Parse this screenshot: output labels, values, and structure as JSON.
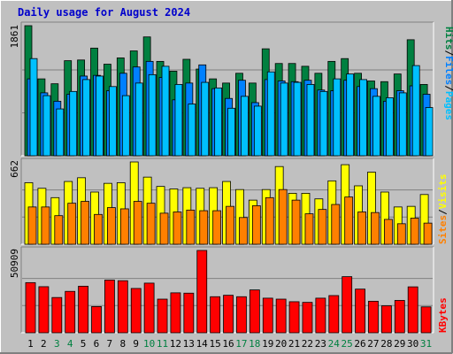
{
  "title": "Daily usage for August 2024",
  "colors": {
    "background": "#c0c0c0",
    "title": "#0000cc",
    "hits": "#008040",
    "files": "#0080ff",
    "pages": "#00c0ff",
    "visits": "#ffff00",
    "sites": "#ff8000",
    "kbytes": "#ff0000",
    "axis_text": "#000000",
    "weekend_day": "#008040"
  },
  "chart_data": [
    {
      "type": "bar",
      "panel": "hits-files-pages",
      "categories": [
        "1",
        "2",
        "3",
        "4",
        "5",
        "6",
        "7",
        "8",
        "9",
        "10",
        "11",
        "12",
        "13",
        "14",
        "15",
        "16",
        "17",
        "18",
        "19",
        "20",
        "21",
        "22",
        "23",
        "24",
        "25",
        "26",
        "27",
        "28",
        "29",
        "30",
        "31"
      ],
      "weekend_days": [
        "3",
        "4",
        "10",
        "11",
        "17",
        "18",
        "24",
        "25",
        "31"
      ],
      "ymax_label": "1861",
      "ylim": [
        0,
        1861
      ],
      "legend": {
        "hits": "Hits",
        "files": "Files",
        "pages": "Pages",
        "sep": "/"
      },
      "series": [
        {
          "name": "Hits",
          "values": [
            1861,
            1100,
            1030,
            1360,
            1370,
            1540,
            1310,
            1400,
            1500,
            1700,
            1350,
            1210,
            1380,
            1240,
            1100,
            1040,
            1180,
            1040,
            1530,
            1320,
            1320,
            1280,
            1180,
            1350,
            1390,
            1180,
            1070,
            1060,
            1170,
            1660,
            1020
          ]
        },
        {
          "name": "Files",
          "values": [
            1100,
            900,
            780,
            880,
            1140,
            1150,
            930,
            1180,
            1270,
            1350,
            1120,
            800,
            1040,
            1300,
            960,
            820,
            1080,
            760,
            1090,
            1070,
            1060,
            1080,
            940,
            930,
            1080,
            990,
            960,
            780,
            930,
            1000,
            880
          ]
        },
        {
          "name": "Pages",
          "values": [
            1390,
            860,
            670,
            920,
            1090,
            1140,
            990,
            860,
            1040,
            1160,
            1280,
            1020,
            740,
            1050,
            970,
            680,
            850,
            710,
            1200,
            1040,
            1050,
            1020,
            920,
            1100,
            1170,
            1090,
            850,
            830,
            900,
            1290,
            690
          ]
        }
      ]
    },
    {
      "type": "bar",
      "panel": "visits-sites",
      "categories": [
        "1",
        "2",
        "3",
        "4",
        "5",
        "6",
        "7",
        "8",
        "9",
        "10",
        "11",
        "12",
        "13",
        "14",
        "15",
        "16",
        "17",
        "18",
        "19",
        "20",
        "21",
        "22",
        "23",
        "24",
        "25",
        "26",
        "27",
        "28",
        "29",
        "30",
        "31"
      ],
      "ymax_label": "662",
      "ylim": [
        0,
        662
      ],
      "legend": {
        "visits": "Visits",
        "sites": "Sites",
        "sep": "/"
      },
      "series": [
        {
          "name": "Visits",
          "values": [
            495,
            450,
            375,
            505,
            535,
            420,
            490,
            495,
            662,
            540,
            465,
            445,
            455,
            450,
            455,
            505,
            440,
            355,
            440,
            625,
            410,
            410,
            365,
            510,
            640,
            470,
            580,
            420,
            300,
            305,
            400
          ]
        },
        {
          "name": "Sites",
          "values": [
            300,
            300,
            230,
            330,
            345,
            240,
            295,
            285,
            345,
            330,
            250,
            260,
            275,
            270,
            270,
            305,
            215,
            310,
            375,
            440,
            355,
            245,
            280,
            320,
            380,
            260,
            255,
            200,
            165,
            210,
            170
          ]
        }
      ]
    },
    {
      "type": "bar",
      "panel": "kbytes",
      "categories": [
        "1",
        "2",
        "3",
        "4",
        "5",
        "6",
        "7",
        "8",
        "9",
        "10",
        "11",
        "12",
        "13",
        "14",
        "15",
        "16",
        "17",
        "18",
        "19",
        "20",
        "21",
        "22",
        "23",
        "24",
        "25",
        "26",
        "27",
        "28",
        "29",
        "30",
        "31"
      ],
      "ymax_label": "50909",
      "ylim": [
        0,
        50909
      ],
      "legend": {
        "kbytes": "KBytes"
      },
      "series": [
        {
          "name": "KBytes",
          "values": [
            31000,
            28500,
            21800,
            25600,
            28800,
            16200,
            32600,
            32200,
            27400,
            30700,
            20800,
            24700,
            24500,
            50909,
            22300,
            23200,
            22300,
            26500,
            21400,
            20800,
            19200,
            18800,
            21400,
            23000,
            34700,
            27000,
            19500,
            16700,
            20000,
            28400,
            16000
          ]
        }
      ]
    }
  ]
}
